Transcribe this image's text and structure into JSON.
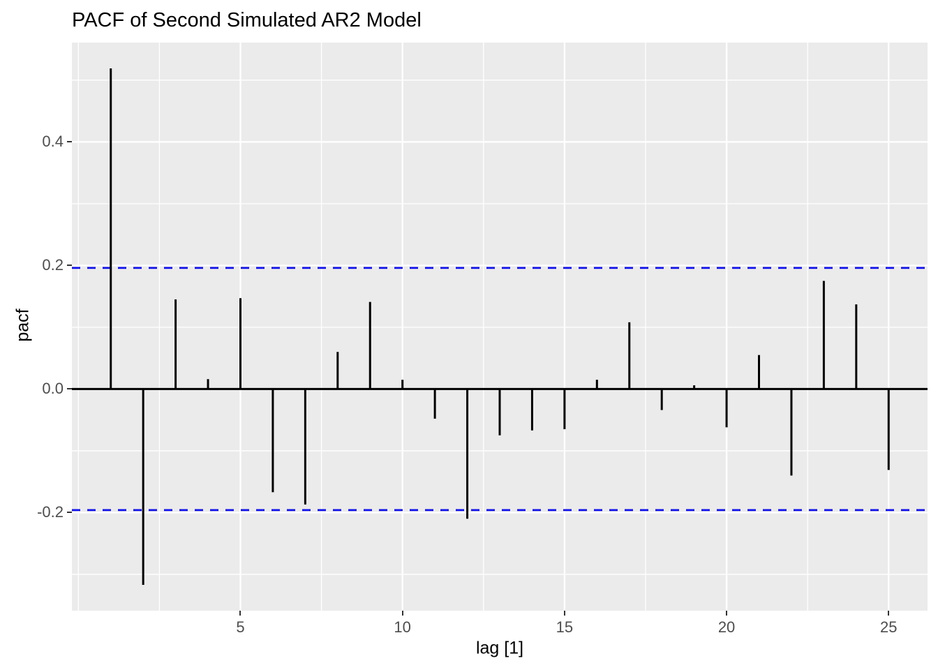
{
  "figure": {
    "background": "#FFFFFF"
  },
  "chart_data": {
    "type": "bar",
    "subtype": "pacf-spike-plot",
    "title": "PACF of Second Simulated AR2 Model",
    "xlabel": "lag [1]",
    "ylabel": "pacf",
    "x": [
      1,
      2,
      3,
      4,
      5,
      6,
      7,
      8,
      9,
      10,
      11,
      12,
      13,
      14,
      15,
      16,
      17,
      18,
      19,
      20,
      21,
      22,
      23,
      24,
      25
    ],
    "values": [
      0.519,
      -0.317,
      0.145,
      0.016,
      0.147,
      -0.167,
      -0.187,
      0.06,
      0.141,
      0.015,
      -0.048,
      -0.21,
      -0.075,
      -0.067,
      -0.065,
      0.015,
      0.108,
      -0.034,
      0.006,
      -0.062,
      0.055,
      -0.14,
      0.175,
      0.137,
      -0.131
    ],
    "conf_bounds": {
      "upper": 0.196,
      "lower": -0.196,
      "line_style": "dashed"
    },
    "xlim": [
      -0.2,
      26.2
    ],
    "ylim": [
      -0.3588,
      0.5608
    ],
    "x_major_ticks": [
      5,
      10,
      15,
      20,
      25
    ],
    "x_tick_labels": [
      "5",
      "10",
      "15",
      "20",
      "25"
    ],
    "x_minor_gridlines": [
      0,
      2.5,
      7.5,
      12.5,
      17.5,
      22.5
    ],
    "y_major_ticks": [
      0.4,
      0.2,
      0.0,
      -0.2
    ],
    "y_tick_labels": [
      "0.4",
      "0.2",
      "0.0",
      "-0.2"
    ],
    "y_minor_gridlines": [
      0.5,
      0.3,
      0.1,
      -0.1,
      -0.3
    ],
    "grid": true,
    "legend_position": "none",
    "style": {
      "panel_bg": "#EBEBEB",
      "grid_color": "#FFFFFF",
      "bar_color": "#000000",
      "ci_color": "#0F0FEE",
      "tick_label_color": "#4D4D4D",
      "tick_mark_color": "#333333",
      "title_color": "#000000"
    }
  }
}
